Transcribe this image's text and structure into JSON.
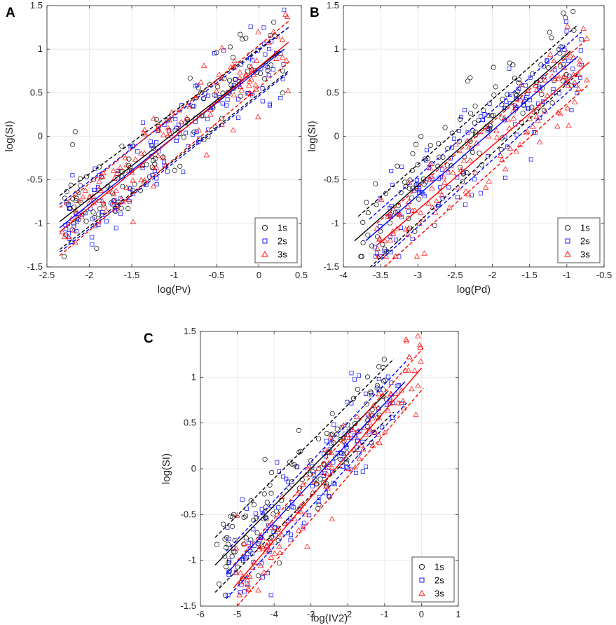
{
  "colors": {
    "s1": "#000000",
    "s2": "#0000ff",
    "s3": "#ff0000",
    "grid": "#e6e6e6",
    "axis": "#262626"
  },
  "chart_data": [
    {
      "type": "scatter",
      "panel": "A",
      "xlabel": "log(Pv)",
      "ylabel": "log(SI)",
      "xlim": [
        -2.5,
        0.5
      ],
      "ylim": [
        -1.5,
        1.5
      ],
      "xticks": [
        "-2.5",
        "-2",
        "-1.5",
        "-1",
        "-0.5",
        "0",
        "0.5"
      ],
      "yticks": [
        "-1.5",
        "-1",
        "-0.5",
        "0",
        "0.5",
        "1",
        "1.5"
      ],
      "grid": true,
      "legend": {
        "position": "bottom-right",
        "entries": [
          "1s",
          "2s",
          "3s"
        ]
      },
      "series": [
        {
          "name": "1s",
          "marker": "circle",
          "color": "#000000",
          "fit": {
            "x": [
              -2.35,
              0.25
            ],
            "y": [
              -0.98,
              0.98
            ]
          },
          "upper": {
            "x": [
              -2.35,
              0.35
            ],
            "y": [
              -0.68,
              1.25
            ]
          },
          "lower": {
            "x": [
              -2.35,
              0.35
            ],
            "y": [
              -1.3,
              0.75
            ]
          },
          "scatter": {
            "xmin": -2.35,
            "xmax": 0.3,
            "spread": 0.28,
            "n": 130,
            "seed": 11
          }
        },
        {
          "name": "2s",
          "marker": "square",
          "color": "#0000ff",
          "fit": {
            "x": [
              -2.35,
              0.3
            ],
            "y": [
              -1.05,
              1.0
            ]
          },
          "upper": {
            "x": [
              -2.35,
              0.35
            ],
            "y": [
              -0.78,
              1.25
            ]
          },
          "lower": {
            "x": [
              -2.35,
              0.35
            ],
            "y": [
              -1.33,
              0.73
            ]
          },
          "scatter": {
            "xmin": -2.35,
            "xmax": 0.3,
            "spread": 0.26,
            "n": 130,
            "seed": 23
          }
        },
        {
          "name": "3s",
          "marker": "triangle",
          "color": "#ff0000",
          "fit": {
            "x": [
              -2.35,
              0.35
            ],
            "y": [
              -1.1,
              1.08
            ]
          },
          "upper": {
            "x": [
              -2.35,
              0.35
            ],
            "y": [
              -0.82,
              1.32
            ]
          },
          "lower": {
            "x": [
              -2.35,
              0.35
            ],
            "y": [
              -1.37,
              0.85
            ]
          },
          "scatter": {
            "xmin": -2.35,
            "xmax": 0.35,
            "spread": 0.26,
            "n": 130,
            "seed": 37
          }
        }
      ]
    },
    {
      "type": "scatter",
      "panel": "B",
      "xlabel": "log(Pd)",
      "ylabel": "log(SI)",
      "xlim": [
        -4,
        -0.5
      ],
      "ylim": [
        -1.5,
        1.5
      ],
      "xticks": [
        "-4",
        "-3.5",
        "-3",
        "-2.5",
        "-2",
        "-1.5",
        "-1",
        "-0.5"
      ],
      "yticks": [
        "-1.5",
        "-1",
        "-0.5",
        "0",
        "0.5",
        "1",
        "1.5"
      ],
      "grid": true,
      "legend": {
        "position": "bottom-right",
        "entries": [
          "1s",
          "2s",
          "3s"
        ]
      },
      "series": [
        {
          "name": "1s",
          "marker": "circle",
          "color": "#000000",
          "fit": {
            "x": [
              -3.85,
              -0.95
            ],
            "y": [
              -1.2,
              0.98
            ]
          },
          "upper": {
            "x": [
              -3.8,
              -0.85
            ],
            "y": [
              -0.92,
              1.28
            ]
          },
          "lower": {
            "x": [
              -3.7,
              -0.85
            ],
            "y": [
              -1.55,
              0.72
            ]
          },
          "scatter": {
            "xmin": -3.8,
            "xmax": -0.9,
            "spread": 0.3,
            "n": 130,
            "seed": 41
          }
        },
        {
          "name": "2s",
          "marker": "square",
          "color": "#0000ff",
          "fit": {
            "x": [
              -3.7,
              -0.85
            ],
            "y": [
              -1.2,
              0.92
            ]
          },
          "upper": {
            "x": [
              -3.65,
              -0.8
            ],
            "y": [
              -0.95,
              1.2
            ]
          },
          "lower": {
            "x": [
              -3.6,
              -0.8
            ],
            "y": [
              -1.5,
              0.65
            ]
          },
          "scatter": {
            "xmin": -3.6,
            "xmax": -0.8,
            "spread": 0.28,
            "n": 130,
            "seed": 53
          }
        },
        {
          "name": "3s",
          "marker": "triangle",
          "color": "#ff0000",
          "fit": {
            "x": [
              -3.55,
              -0.7
            ],
            "y": [
              -1.25,
              0.85
            ]
          },
          "upper": {
            "x": [
              -3.55,
              -0.75
            ],
            "y": [
              -1.0,
              1.1
            ]
          },
          "lower": {
            "x": [
              -3.45,
              -0.7
            ],
            "y": [
              -1.5,
              0.6
            ]
          },
          "scatter": {
            "xmin": -3.55,
            "xmax": -0.7,
            "spread": 0.27,
            "n": 130,
            "seed": 67
          }
        }
      ]
    },
    {
      "type": "scatter",
      "panel": "C",
      "xlabel": "log(IV2)",
      "ylabel": "log(SI)",
      "xlim": [
        -6,
        1
      ],
      "ylim": [
        -1.5,
        1.5
      ],
      "xticks": [
        "-6",
        "-5",
        "-4",
        "-3",
        "-2",
        "-1",
        "0",
        "1"
      ],
      "yticks": [
        "-1.5",
        "-1",
        "-0.5",
        "0",
        "0.5",
        "1",
        "1.5"
      ],
      "grid": true,
      "legend": {
        "position": "bottom-right",
        "entries": [
          "1s",
          "2s",
          "3s"
        ]
      },
      "series": [
        {
          "name": "1s",
          "marker": "circle",
          "color": "#000000",
          "fit": {
            "x": [
              -5.6,
              -0.9
            ],
            "y": [
              -1.05,
              0.85
            ]
          },
          "upper": {
            "x": [
              -5.6,
              -0.75
            ],
            "y": [
              -0.75,
              1.2
            ]
          },
          "lower": {
            "x": [
              -5.6,
              -0.75
            ],
            "y": [
              -1.35,
              0.62
            ]
          },
          "scatter": {
            "xmin": -5.6,
            "xmax": -0.9,
            "spread": 0.3,
            "n": 130,
            "seed": 71
          }
        },
        {
          "name": "2s",
          "marker": "square",
          "color": "#0000ff",
          "fit": {
            "x": [
              -5.3,
              -0.45
            ],
            "y": [
              -1.15,
              0.95
            ]
          },
          "upper": {
            "x": [
              -5.3,
              -0.4
            ],
            "y": [
              -0.9,
              1.18
            ]
          },
          "lower": {
            "x": [
              -5.3,
              -0.4
            ],
            "y": [
              -1.42,
              0.72
            ]
          },
          "scatter": {
            "xmin": -5.3,
            "xmax": -0.5,
            "spread": 0.28,
            "n": 130,
            "seed": 83
          }
        },
        {
          "name": "3s",
          "marker": "triangle",
          "color": "#ff0000",
          "fit": {
            "x": [
              -5.1,
              0.0
            ],
            "y": [
              -1.3,
              1.1
            ]
          },
          "upper": {
            "x": [
              -5.1,
              0.05
            ],
            "y": [
              -1.05,
              1.32
            ]
          },
          "lower": {
            "x": [
              -5.0,
              0.05
            ],
            "y": [
              -1.5,
              0.88
            ]
          },
          "scatter": {
            "xmin": -5.1,
            "xmax": 0.0,
            "spread": 0.27,
            "n": 130,
            "seed": 97
          }
        }
      ]
    }
  ]
}
